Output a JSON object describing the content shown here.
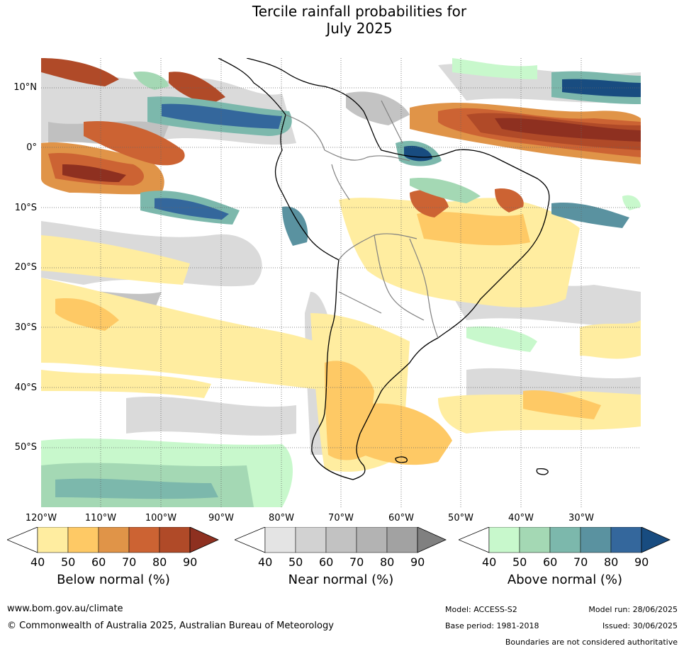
{
  "title_line1": "Tercile rainfall probabilities for",
  "title_line2": "July 2025",
  "lat_labels": [
    "10°N",
    "0°",
    "10°S",
    "20°S",
    "30°S",
    "40°S",
    "50°S"
  ],
  "lon_labels": [
    "120°W",
    "110°W",
    "100°W",
    "90°W",
    "80°W",
    "70°W",
    "60°W",
    "50°W",
    "40°W",
    "30°W"
  ],
  "legend": {
    "below": {
      "label": "Below normal (%)",
      "ticks": [
        "40",
        "50",
        "60",
        "70",
        "80",
        "90"
      ],
      "colors": [
        "#ffeda0",
        "#fec965",
        "#e09448",
        "#cc6333",
        "#b04a28",
        "#8e3020"
      ]
    },
    "near": {
      "label": "Near normal (%)",
      "ticks": [
        "40",
        "50",
        "60",
        "70",
        "80",
        "90"
      ],
      "colors": [
        "#e4e4e4",
        "#d2d2d2",
        "#c2c2c2",
        "#b3b3b3",
        "#a2a2a2",
        "#808080"
      ]
    },
    "above": {
      "label": "Above normal (%)",
      "ticks": [
        "40",
        "50",
        "60",
        "70",
        "80",
        "90"
      ],
      "colors": [
        "#c8f8cc",
        "#a4d8b4",
        "#7cb8ac",
        "#5a92a0",
        "#34679c",
        "#184c80"
      ]
    }
  },
  "footer": {
    "website": "www.bom.gov.au/climate",
    "copyright": "© Commonwealth of Australia 2025, Australian Bureau of Meteorology",
    "model": "Model: ACCESS-S2",
    "base_period": "Base period: 1981-2018",
    "model_run": "Model run: 28/06/2025",
    "issued": "Issued: 30/06/2025",
    "disclaimer": "Boundaries are not considered authoritative"
  }
}
